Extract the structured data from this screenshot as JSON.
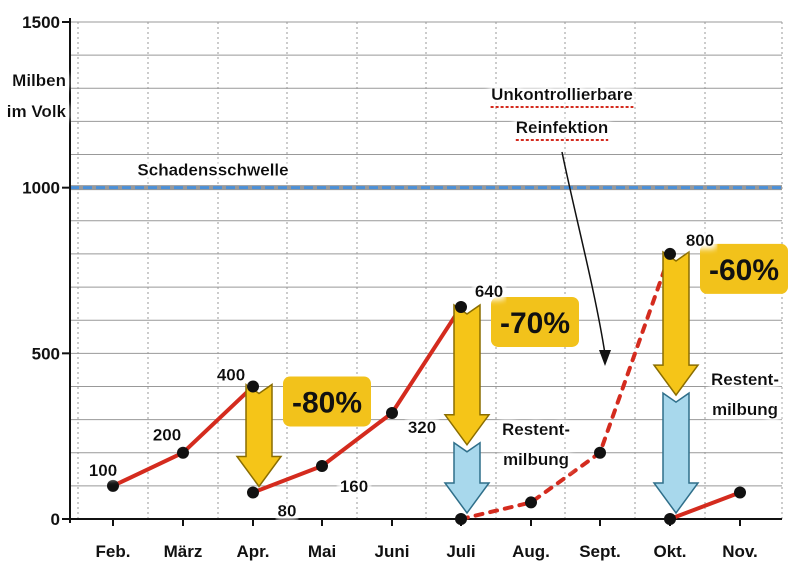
{
  "chart_data": {
    "type": "line",
    "ylabel_lines": [
      "Milben",
      "im Volk"
    ],
    "ylim": [
      0,
      1500
    ],
    "yticks": [
      0,
      500,
      1000,
      1500
    ],
    "grid": true,
    "categories": [
      "Feb.",
      "März",
      "Apr.",
      "Mai",
      "Juni",
      "Juli",
      "Aug.",
      "Sept.",
      "Okt.",
      "Nov."
    ],
    "series": [
      {
        "style": "solid",
        "color": "#d42b1e",
        "points": [
          {
            "x": 0,
            "y": 100
          },
          {
            "x": 1,
            "y": 200
          },
          {
            "x": 2,
            "y": 400
          }
        ]
      },
      {
        "style": "solid",
        "color": "#d42b1e",
        "points": [
          {
            "x": 2,
            "y": 80
          },
          {
            "x": 3,
            "y": 160
          },
          {
            "x": 4,
            "y": 320
          },
          {
            "x": 5,
            "y": 640
          }
        ]
      },
      {
        "style": "dashed",
        "color": "#d42b1e",
        "points": [
          {
            "x": 5,
            "y": 0
          },
          {
            "x": 6,
            "y": 50
          },
          {
            "x": 7,
            "y": 200
          },
          {
            "x": 8,
            "y": 800
          }
        ]
      },
      {
        "style": "solid",
        "color": "#d42b1e",
        "points": [
          {
            "x": 8,
            "y": 0
          },
          {
            "x": 9,
            "y": 80
          }
        ]
      }
    ],
    "data_labels": [
      {
        "x": 0,
        "y": 100,
        "text": "100"
      },
      {
        "x": 1,
        "y": 200,
        "text": "200"
      },
      {
        "x": 2,
        "y": 400,
        "text": "400"
      },
      {
        "x": 2,
        "y": 80,
        "text": "80"
      },
      {
        "x": 3,
        "y": 160,
        "text": "160"
      },
      {
        "x": 4,
        "y": 320,
        "text": "320"
      },
      {
        "x": 5,
        "y": 640,
        "text": "640"
      },
      {
        "x": 8,
        "y": 800,
        "text": "800"
      }
    ],
    "threshold": {
      "y": 1000,
      "label": "Schadensschwelle",
      "color": "#4a90d9"
    },
    "reductions": [
      {
        "x": 2,
        "from": 400,
        "to": 80,
        "label": "-80%"
      },
      {
        "x": 5,
        "from": 640,
        "to": 0,
        "label": "-70%",
        "residual_from": 230,
        "residual_label": [
          "Restent-",
          "milbung"
        ]
      },
      {
        "x": 8,
        "from": 800,
        "to": 0,
        "label": "-60%",
        "residual_from": 380,
        "residual_label": [
          "Restent-",
          "milbung"
        ]
      }
    ],
    "reinfection_annotation": {
      "lines": [
        "Unkontrollierbare",
        "Reinfektion"
      ],
      "underline_color": "#d42b1e"
    },
    "colors": {
      "line": "#d42b1e",
      "arrow_fill": "#f5c518",
      "arrow_stroke": "#8a6d00",
      "residual_fill": "#a8d8ec",
      "badge_fill": "#f2c21b",
      "grid": "#999999",
      "axis": "#111111"
    }
  }
}
